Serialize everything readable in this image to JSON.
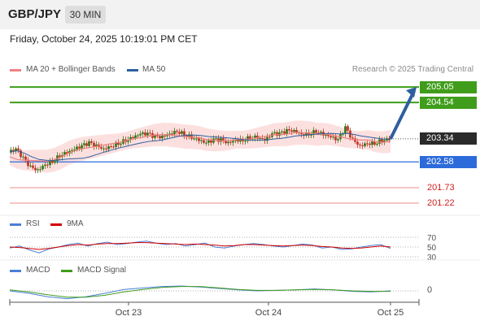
{
  "header": {
    "symbol": "GBP/JPY",
    "timeframe": "30 MIN"
  },
  "datetime": "Friday, October 24, 2025 10:19:01 PM CET",
  "credit": "Research © 2025 Trading Central",
  "colors": {
    "ma20": "#f08080",
    "ma50": "#2e5f9e",
    "resistance": "#3f9d1b",
    "support": "#2d6bdb",
    "red_level": "#e03030",
    "rsi": "#4a7fd6",
    "rsi_ma": "#d00000",
    "macd": "#4a7fd6",
    "macd_signal": "#3f9d1b",
    "bull": "#3a7a1a",
    "bear": "#c0392b",
    "arrow": "#2e5f9e"
  },
  "chart_data": [
    {
      "type": "candlestick",
      "title": "GBP/JPY 30 MIN",
      "x_ticks": [
        "Oct 23",
        "Oct 24",
        "Oct 25"
      ],
      "legend": [
        "MA 20 + Bollinger Bands",
        "MA 50"
      ],
      "ylim": [
        200.9,
        205.4
      ],
      "close_path": [
        202.9,
        203.0,
        202.7,
        202.4,
        202.3,
        202.5,
        202.6,
        202.8,
        202.9,
        203.0,
        203.1,
        203.2,
        203.1,
        203.0,
        203.1,
        203.2,
        203.3,
        203.4,
        203.5,
        203.5,
        203.4,
        203.4,
        203.5,
        203.6,
        203.5,
        203.4,
        203.3,
        203.2,
        203.3,
        203.3,
        203.2,
        203.3,
        203.3,
        203.4,
        203.4,
        203.3,
        203.5,
        203.5,
        203.6,
        203.6,
        203.5,
        203.5,
        203.6,
        203.5,
        203.4,
        203.3,
        203.7,
        203.3,
        203.1,
        203.2,
        203.2,
        203.3,
        203.34
      ],
      "levels": [
        {
          "label": "205.05",
          "value": 205.05,
          "kind": "resistance"
        },
        {
          "label": "204.54",
          "value": 204.54,
          "kind": "resistance"
        },
        {
          "label": "203.34",
          "value": 203.34,
          "kind": "last"
        },
        {
          "label": "202.58",
          "value": 202.58,
          "kind": "support"
        },
        {
          "label": "201.73",
          "value": 201.73,
          "kind": "red"
        },
        {
          "label": "201.22",
          "value": 201.22,
          "kind": "red"
        }
      ],
      "forecast_target": 205.05
    },
    {
      "type": "line",
      "title": "RSI",
      "series": [
        {
          "name": "RSI"
        },
        {
          "name": "9MA"
        }
      ],
      "levels": [
        "70",
        "50",
        "30"
      ],
      "rsi_values": [
        48,
        52,
        44,
        38,
        46,
        50,
        55,
        58,
        52,
        57,
        60,
        55,
        57,
        60,
        62,
        58,
        55,
        57,
        52,
        55,
        58,
        50,
        48,
        52,
        55,
        57,
        55,
        52,
        50,
        53,
        56,
        54,
        48,
        50,
        45,
        46,
        50,
        53,
        55,
        47
      ],
      "ma_values": [
        50,
        49,
        47,
        45,
        47,
        50,
        53,
        55,
        54,
        56,
        57,
        57,
        58,
        59,
        59,
        58,
        57,
        56,
        55,
        56,
        55,
        54,
        52,
        53,
        55,
        55,
        54,
        53,
        52,
        53,
        54,
        53,
        51,
        50,
        48,
        47,
        48,
        50,
        52,
        50
      ]
    },
    {
      "type": "line",
      "title": "MACD",
      "series": [
        {
          "name": "MACD"
        },
        {
          "name": "MACD Signal"
        }
      ],
      "zero_label": "0",
      "macd_values": [
        0.0,
        -0.05,
        -0.12,
        -0.16,
        -0.12,
        -0.05,
        0.03,
        0.06,
        0.09,
        0.1,
        0.08,
        0.05,
        0.02,
        0.0,
        0.01,
        0.02,
        0.04,
        0.02,
        -0.01,
        -0.02,
        0.0
      ],
      "signal_values": [
        0.02,
        -0.02,
        -0.08,
        -0.13,
        -0.13,
        -0.09,
        -0.02,
        0.03,
        0.07,
        0.09,
        0.09,
        0.06,
        0.03,
        0.01,
        0.01,
        0.02,
        0.03,
        0.02,
        0.0,
        -0.01,
        -0.01
      ]
    }
  ]
}
